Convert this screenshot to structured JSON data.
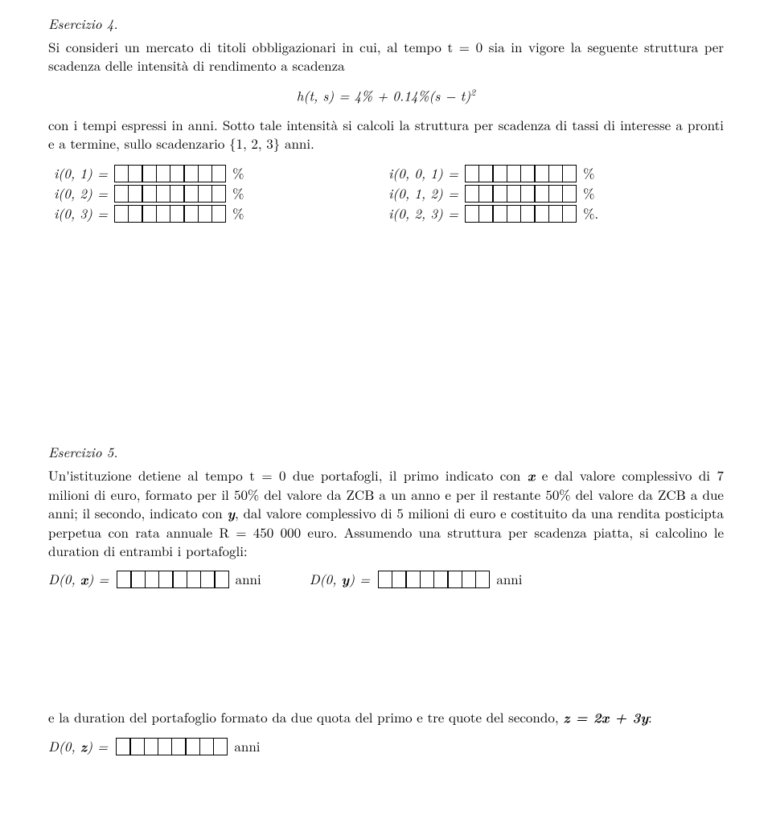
{
  "ex4": {
    "heading": "Esercizio 4.",
    "para1": "Si consideri un mercato di titoli obbligazionari in cui, al tempo t = 0 sia in vigore la seguente struttura per scadenza delle intensità di rendimento a scadenza",
    "formula": "h(t, s) = 4% + 0.14%(s − t)",
    "formula_exp": "2",
    "para2": "con i tempi espressi in anni. Sotto tale intensità si calcoli la struttura per scadenza di tassi di interesse a pronti e a termine, sullo scadenzario {1, 2, 3} anni.",
    "rows": [
      {
        "l1": "i(0, 1) =",
        "u1": "%",
        "l2": "i(0, 0, 1) =",
        "u2": "%"
      },
      {
        "l1": "i(0, 2) =",
        "u1": "%",
        "l2": "i(0, 1, 2) =",
        "u2": "%"
      },
      {
        "l1": "i(0, 3) =",
        "u1": "%",
        "l2": "i(0, 2, 3) =",
        "u2": "%."
      }
    ]
  },
  "ex5": {
    "heading": "Esercizio 5.",
    "para_before_x": "Un'istituzione detiene al tempo t = 0 due portafogli, il primo indicato con ",
    "x": "x",
    "para_after_x": " e dal valore complessivo di 7 milioni di euro, formato per il 50% del valore da ZCB a un anno e per il restante 50% del valore da ZCB a due anni; il secondo, indicato con ",
    "y": "y",
    "para_after_y": ", dal valore complessivo di 5 milioni di euro e costituito da una rendita posticipta perpetua con rata annuale R = 450 000 euro. Assumendo una struttura per scadenza piatta, si calcolino le duration di entrambi i portafogli:",
    "d0x": "D(0, x) =",
    "d0y": "D(0, y) =",
    "anni": "anni",
    "para2_before": "e la duration del portafoglio formato da due quota del primo e tre quote del secondo, ",
    "z_eq": "z = 2x + 3y",
    "para2_after": ":",
    "d0z": "D(0, z) ="
  }
}
